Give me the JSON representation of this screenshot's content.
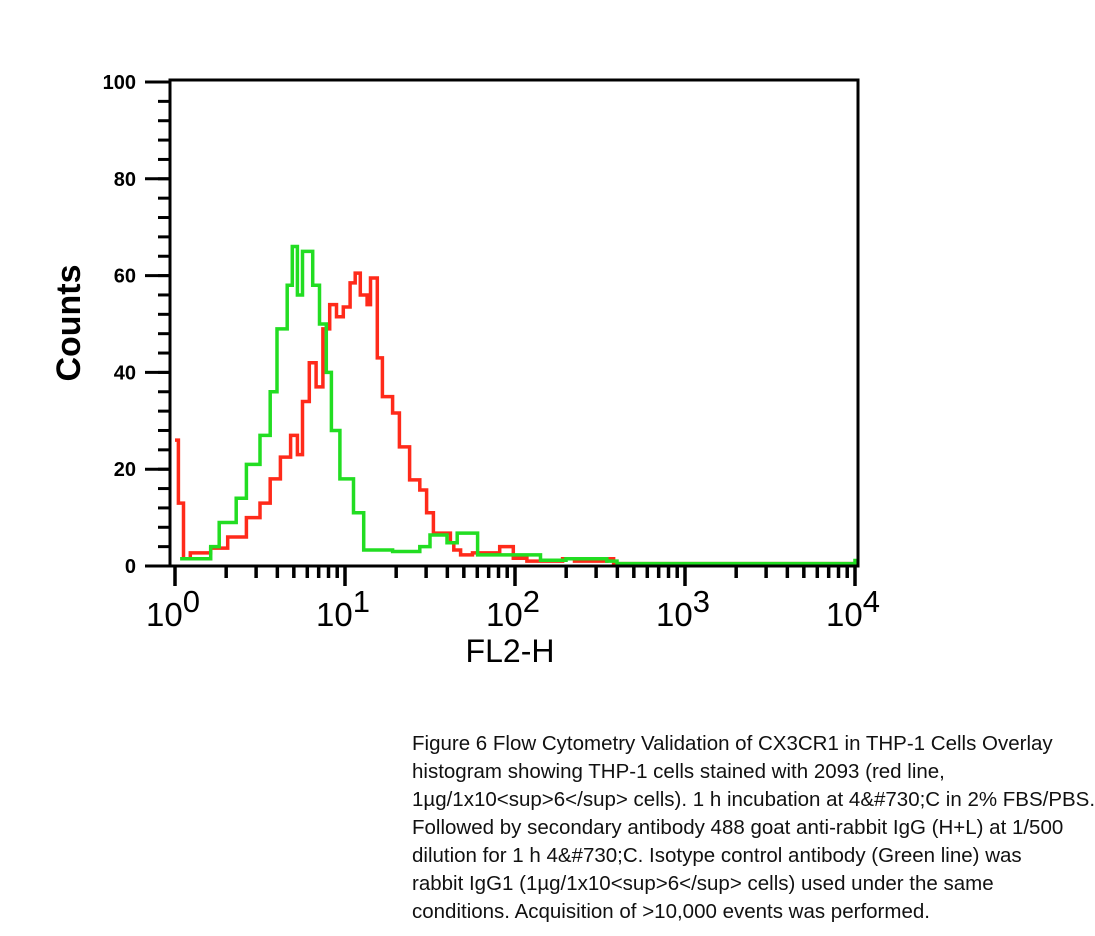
{
  "chart_data": {
    "type": "line",
    "title": "",
    "xlabel": "FL2-H",
    "ylabel": "Counts",
    "xscale": "log",
    "xlim_log10": [
      0,
      4
    ],
    "ylim": [
      0,
      100
    ],
    "y_ticks": [
      "0",
      "20",
      "40",
      "60",
      "80",
      "100"
    ],
    "y_tick_values": [
      0,
      20,
      40,
      60,
      80,
      100
    ],
    "y_minor_step": 4,
    "x_ticks": [
      {
        "base": "10",
        "exp": "0"
      },
      {
        "base": "10",
        "exp": "1"
      },
      {
        "base": "10",
        "exp": "2"
      },
      {
        "base": "10",
        "exp": "3"
      },
      {
        "base": "10",
        "exp": "4"
      }
    ],
    "series": [
      {
        "name": "CX3CR1 antibody 2093 (red line)",
        "color": "#ff2a1a",
        "x_log10": [
          0.0,
          0.01,
          0.02,
          0.03,
          0.05,
          0.09,
          0.21,
          0.31,
          0.42,
          0.5,
          0.56,
          0.62,
          0.68,
          0.72,
          0.75,
          0.79,
          0.83,
          0.87,
          0.91,
          0.95,
          0.99,
          1.03,
          1.06,
          1.09,
          1.13,
          1.15,
          1.19,
          1.22,
          1.28,
          1.32,
          1.38,
          1.44,
          1.48,
          1.52,
          1.62,
          1.64,
          1.68,
          1.75,
          1.91,
          1.99,
          2.07,
          2.28,
          2.35,
          2.54,
          2.58,
          4.0
        ],
        "counts": [
          26,
          26,
          13,
          13,
          1.5,
          2.7,
          3.7,
          6,
          10,
          13,
          18,
          22.5,
          27,
          23,
          34,
          42,
          37,
          49,
          54,
          51.5,
          53.5,
          58.5,
          60.5,
          56,
          54,
          59.5,
          43,
          35,
          31.6,
          24.6,
          17.8,
          15.7,
          11,
          6.8,
          4.8,
          3.3,
          2.3,
          2.7,
          4,
          1.6,
          1,
          1.5,
          1,
          1.5,
          0.5,
          0.5
        ]
      },
      {
        "name": "Isotype control rabbit IgG1 (green line)",
        "color": "#22dd22",
        "x_log10": [
          0.03,
          0.21,
          0.26,
          0.36,
          0.42,
          0.5,
          0.56,
          0.6,
          0.66,
          0.69,
          0.72,
          0.75,
          0.81,
          0.85,
          0.89,
          0.92,
          0.97,
          1.05,
          1.11,
          1.28,
          1.44,
          1.5,
          1.6,
          1.66,
          1.78,
          2.15,
          2.3,
          2.54,
          2.6,
          3.98,
          4.0
        ],
        "counts": [
          1.5,
          4,
          9,
          14,
          21,
          27,
          36,
          49,
          58,
          66,
          56,
          65,
          58,
          50,
          40,
          28,
          18,
          11,
          3.3,
          3,
          4,
          6.4,
          4.8,
          6.8,
          2.3,
          1.2,
          1.5,
          1,
          0.5,
          0.5,
          1.5
        ]
      }
    ]
  },
  "caption": {
    "lines": [
      "Figure 6 Flow Cytometry Validation of CX3CR1 in THP-1 Cells Overlay",
      "histogram showing THP-1 cells stained with 2093 (red line,",
      "1µg/1x10<sup>6</sup> cells). 1 h incubation at 4&#730;C in 2% FBS/PBS.",
      "Followed by secondary antibody 488 goat anti-rabbit IgG (H+L) at 1/500",
      "dilution for 1 h 4&#730;C. Isotype control antibody (Green line) was",
      "rabbit IgG1 (1µg/1x10<sup>6</sup> cells) used under the same",
      "conditions. Acquisition of >10,000 events was performed."
    ]
  }
}
